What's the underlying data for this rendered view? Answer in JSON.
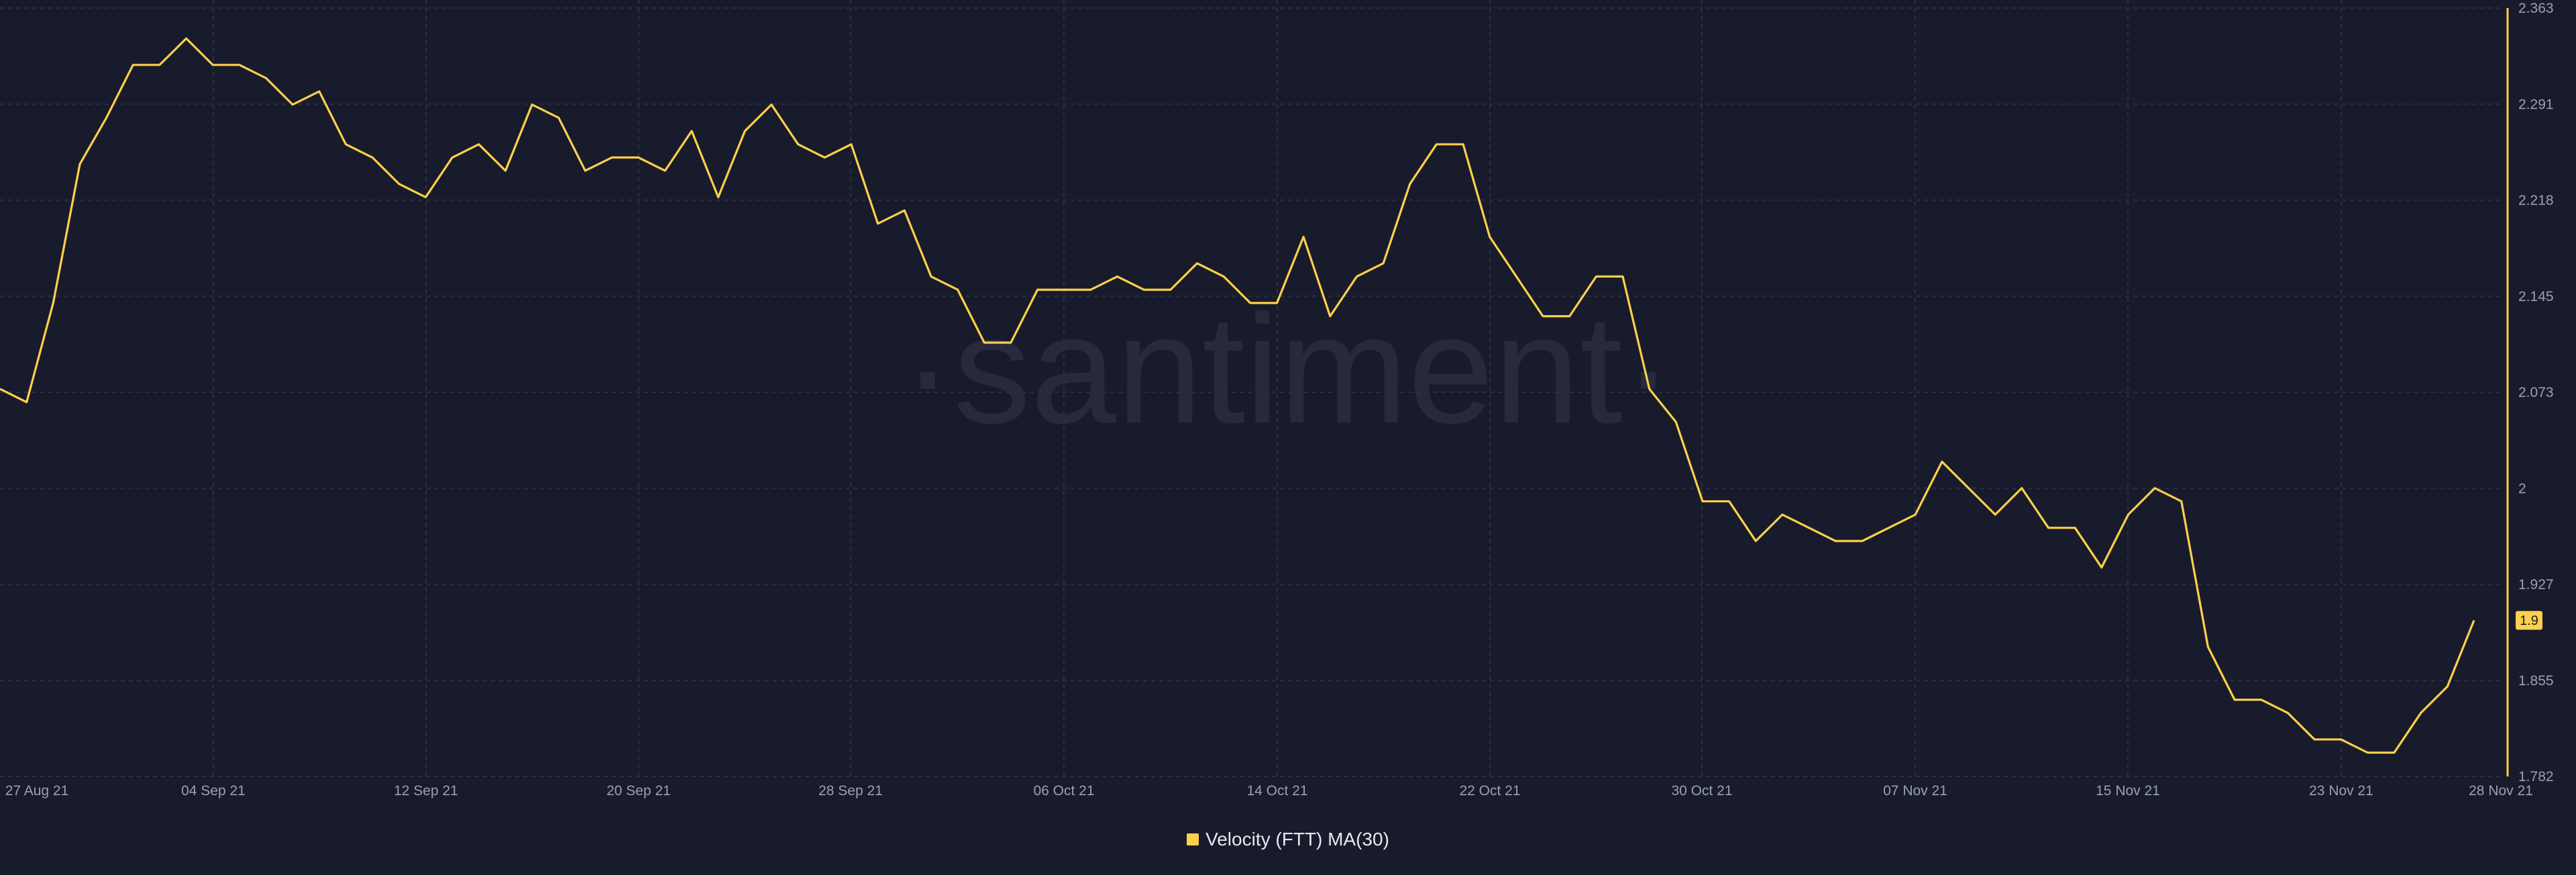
{
  "watermark": "·santiment·",
  "colors": {
    "background": "#181b2b",
    "line": "#ffd04a",
    "grid": "#2a2f45",
    "axis_text": "#9aa0b4",
    "badge_text": "#181b2b",
    "watermark": "#262a3c"
  },
  "legend": {
    "label": "Velocity (FTT) MA(30)",
    "color": "#ffd04a"
  },
  "last_value_badge": "1.9",
  "chart_data": {
    "type": "line",
    "title": "",
    "xlabel": "",
    "ylabel": "",
    "ylim": [
      1.782,
      2.363
    ],
    "grid": true,
    "legend_position": "bottom-center",
    "y_ticks": [
      "2.363",
      "2.291",
      "2.218",
      "2.145",
      "2.073",
      "2",
      "1.927",
      "1.855",
      "1.782"
    ],
    "x_ticks": [
      "27 Aug 21",
      "04 Sep 21",
      "12 Sep 21",
      "20 Sep 21",
      "28 Sep 21",
      "06 Oct 21",
      "14 Oct 21",
      "22 Oct 21",
      "30 Oct 21",
      "07 Nov 21",
      "15 Nov 21",
      "23 Nov 21",
      "28 Nov 21"
    ],
    "series": [
      {
        "name": "Velocity (FTT) MA(30)",
        "values": [
          2.075,
          2.065,
          2.14,
          2.245,
          2.28,
          2.32,
          2.32,
          2.34,
          2.32,
          2.32,
          2.31,
          2.29,
          2.3,
          2.26,
          2.25,
          2.23,
          2.22,
          2.25,
          2.26,
          2.24,
          2.29,
          2.28,
          2.24,
          2.25,
          2.25,
          2.24,
          2.27,
          2.22,
          2.27,
          2.29,
          2.26,
          2.25,
          2.26,
          2.2,
          2.21,
          2.16,
          2.15,
          2.11,
          2.11,
          2.15,
          2.15,
          2.15,
          2.16,
          2.15,
          2.15,
          2.17,
          2.16,
          2.14,
          2.14,
          2.19,
          2.13,
          2.16,
          2.17,
          2.23,
          2.26,
          2.26,
          2.19,
          2.16,
          2.13,
          2.13,
          2.16,
          2.16,
          2.075,
          2.05,
          1.99,
          1.99,
          1.96,
          1.98,
          1.97,
          1.96,
          1.96,
          1.97,
          1.98,
          2.02,
          2.0,
          1.98,
          2.0,
          1.97,
          1.97,
          1.94,
          1.98,
          2.0,
          1.99,
          1.88,
          1.84,
          1.84,
          1.83,
          1.81,
          1.81,
          1.8,
          1.8,
          1.83,
          1.85,
          1.9
        ]
      }
    ]
  }
}
